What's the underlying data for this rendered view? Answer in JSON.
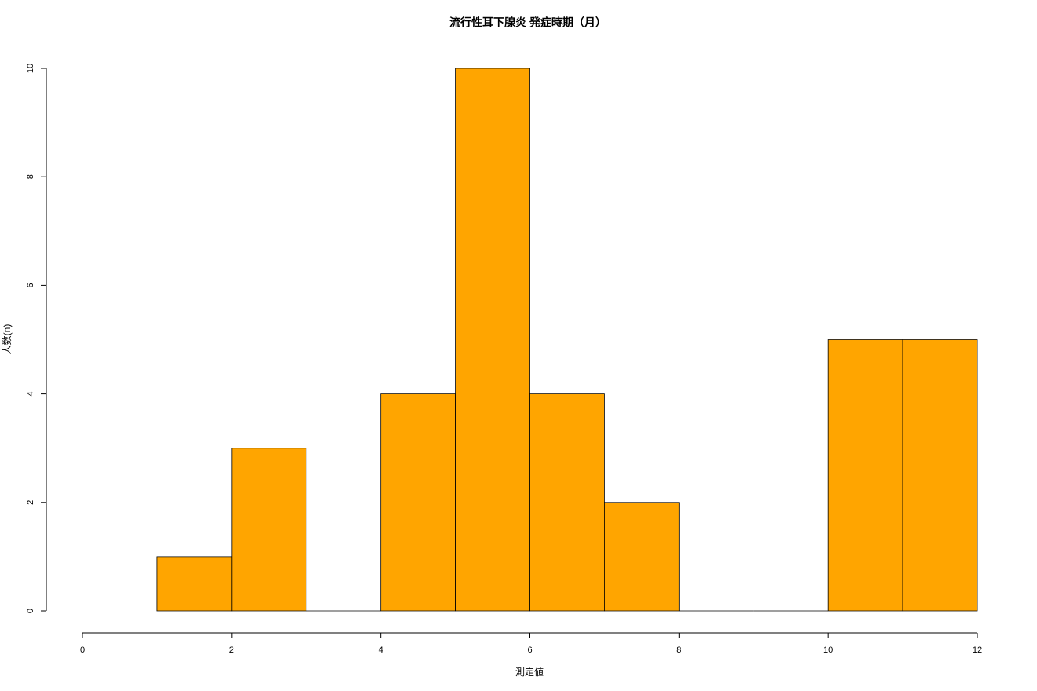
{
  "chart_data": {
    "type": "histogram",
    "title": "流行性耳下腺炎 発症時期（月）",
    "x_label": "測定値",
    "y_label": "人数(n)",
    "bins": [
      1,
      2,
      3,
      4,
      5,
      6,
      7,
      8,
      9,
      10,
      11,
      12
    ],
    "counts": [
      1,
      3,
      0,
      4,
      10,
      4,
      2,
      0,
      0,
      5,
      5
    ],
    "color": "#ffa500",
    "xlim": [
      0,
      12
    ],
    "xticks": [
      0,
      2,
      4,
      6,
      8,
      10,
      12
    ],
    "ylim": [
      0,
      10
    ],
    "yticks": [
      0,
      2,
      4,
      6,
      8,
      10
    ]
  }
}
